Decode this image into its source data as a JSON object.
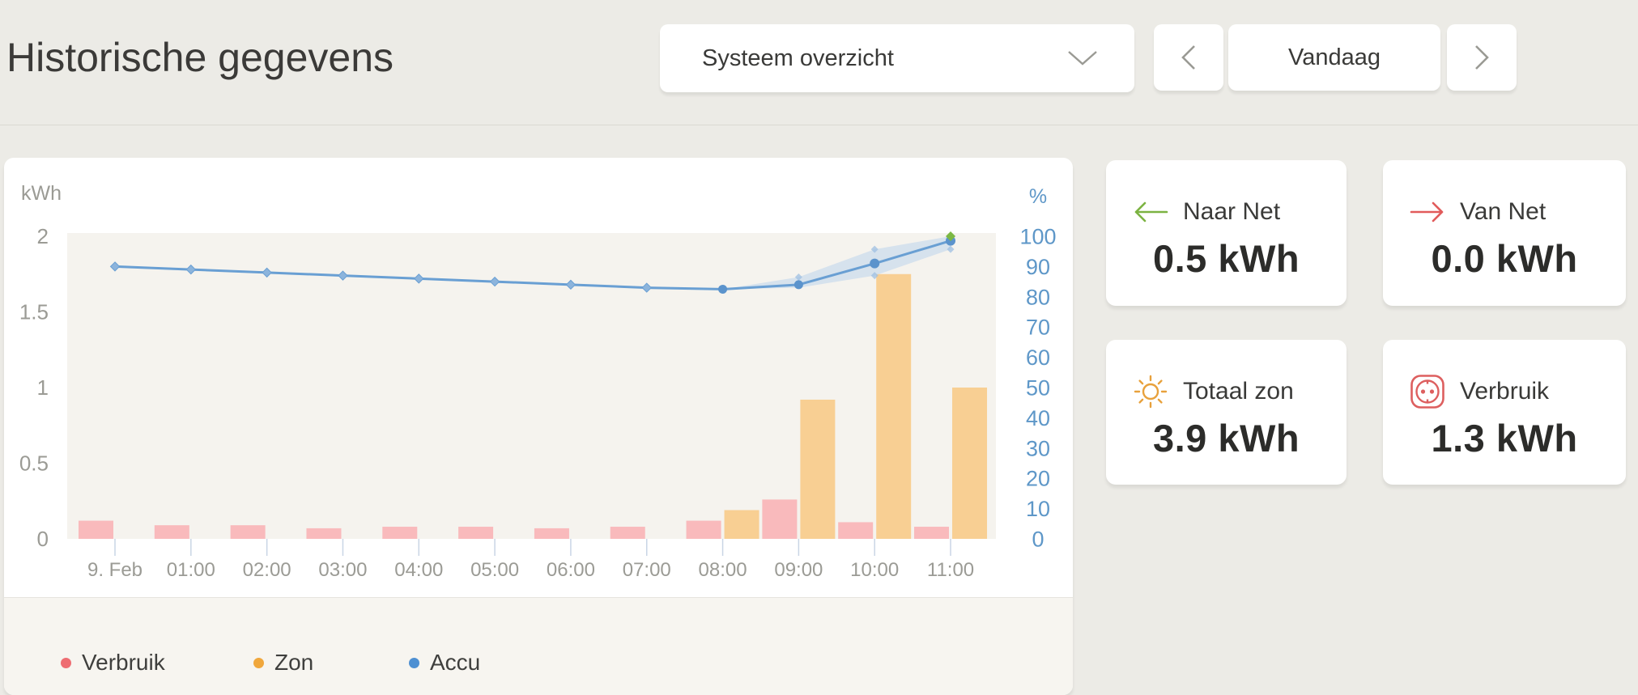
{
  "header": {
    "title": "Historische gegevens",
    "selector_value": "Systeem overzicht",
    "today_label": "Vandaag"
  },
  "chart_data": {
    "type": "mixed",
    "categories": [
      "9. Feb",
      "01:00",
      "02:00",
      "03:00",
      "04:00",
      "05:00",
      "06:00",
      "07:00",
      "08:00",
      "09:00",
      "10:00",
      "11:00"
    ],
    "series": [
      {
        "name": "Verbruik",
        "type": "bar",
        "unit": "kWh",
        "axis": "left",
        "color": "#F9BABC",
        "values": [
          0.12,
          0.09,
          0.09,
          0.07,
          0.08,
          0.08,
          0.07,
          0.08,
          0.12,
          0.26,
          0.11,
          0.08
        ]
      },
      {
        "name": "Zon",
        "type": "bar",
        "unit": "kWh",
        "axis": "left",
        "color": "#F8CF93",
        "values": [
          0,
          0,
          0,
          0,
          0,
          0,
          0,
          0,
          0.19,
          0.92,
          1.75,
          1.0
        ]
      },
      {
        "name": "Accu",
        "type": "line",
        "unit": "%",
        "axis": "right",
        "color": "#699FD3",
        "marker_fill": "#8CB4DC",
        "point_fill": "#5B93CC",
        "values": [
          90,
          89,
          88,
          87,
          86,
          85,
          84,
          83,
          82.5,
          84,
          91,
          98.5
        ],
        "band": {
          "start_index": 8,
          "low": [
            82.5,
            83,
            87,
            95.7
          ],
          "high": [
            82.5,
            86.5,
            95.7,
            100
          ],
          "color": "#BCD4EC",
          "opacity": 0.55
        },
        "band_markers": [
          [
            9,
            86.5
          ],
          [
            10,
            95.7
          ],
          [
            10,
            87
          ],
          [
            11,
            95.7
          ]
        ],
        "end_marker": {
          "index": 11,
          "value": 100,
          "color": "#7CB844"
        }
      }
    ],
    "left_axis": {
      "title": "kWh",
      "ticks": [
        2,
        1.5,
        1,
        0.5,
        0
      ],
      "min": 0,
      "max": 2,
      "text_color": "#9B9B95"
    },
    "right_axis": {
      "title": "%",
      "ticks": [
        100,
        90,
        80,
        70,
        60,
        50,
        40,
        30,
        20,
        10,
        0
      ],
      "min": 0,
      "max": 100,
      "text_color": "#5E97C8"
    },
    "x_axis": {
      "text_color": "#9B9B95",
      "tick_color": "#C9D5E5"
    },
    "plot_bg": "#F5F3EE",
    "grid": false,
    "legend_position": "bottom",
    "legend": [
      {
        "label": "Verbruik",
        "color": "#EE6D72"
      },
      {
        "label": "Zon",
        "color": "#F0A73C"
      },
      {
        "label": "Accu",
        "color": "#4E90D2"
      }
    ]
  },
  "cards": [
    {
      "icon": "arrow-left-icon",
      "icon_color": "#7CB342",
      "label": "Naar Net",
      "value": "0.5 kWh"
    },
    {
      "icon": "arrow-right-icon",
      "icon_color": "#E15B5B",
      "label": "Van Net",
      "value": "0.0 kWh"
    },
    {
      "icon": "sun-icon",
      "icon_color": "#E8A13C",
      "label": "Totaal zon",
      "value": "3.9 kWh"
    },
    {
      "icon": "socket-icon",
      "icon_color": "#DD5F5F",
      "label": "Verbruik",
      "value": "1.3 kWh"
    }
  ]
}
